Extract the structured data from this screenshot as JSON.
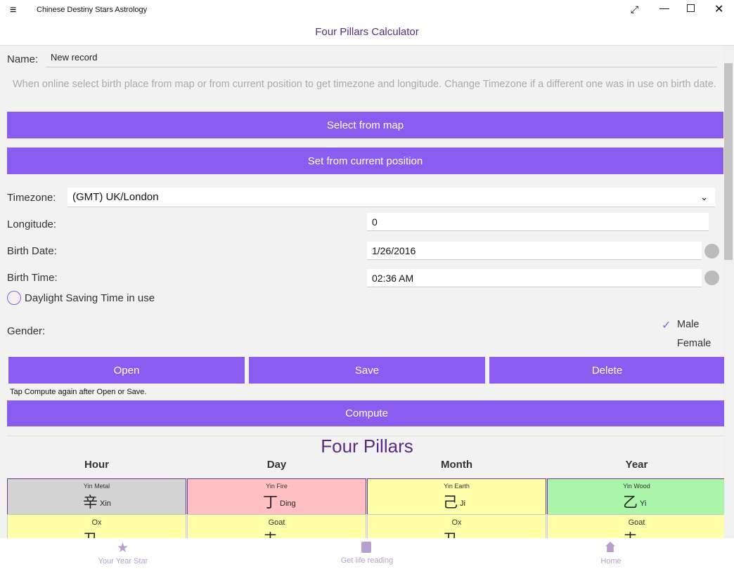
{
  "window": {
    "title": "Chinese Destiny Stars Astrology"
  },
  "header": {
    "title": "Four Pillars Calculator"
  },
  "form": {
    "name_label": "Name:",
    "name_value": "New record",
    "hint": "When online select birth place from map or from current position to get timezone and longitude. Change Timezone if a different one was in use on birth date.",
    "select_map": "Select from map",
    "set_position": "Set from current position",
    "timezone_label": "Timezone:",
    "timezone_value": "(GMT) UK/London",
    "longitude_label": "Longitude:",
    "longitude_value": "0",
    "birth_date_label": "Birth Date:",
    "birth_date_value": "1/26/2016",
    "birth_time_label": "Birth Time:",
    "birth_time_value": "02:36 AM",
    "dst_label": "Daylight Saving Time in use",
    "gender_label": "Gender:",
    "gender_options": [
      "Male",
      "Female"
    ],
    "buttons": [
      "Open",
      "Save",
      "Delete"
    ],
    "note": "Tap Compute again after Open or Save.",
    "compute": "Compute"
  },
  "pillars": {
    "title": "Four Pillars",
    "columns": [
      {
        "heading": "Hour",
        "stem_element": "Yin Metal",
        "stem_char": "辛",
        "stem_name": "Xin",
        "branch": "Ox",
        "branch_char": "丑"
      },
      {
        "heading": "Day",
        "stem_element": "Yin Fire",
        "stem_char": "丁",
        "stem_name": "Ding",
        "branch": "Goat",
        "branch_char": "未"
      },
      {
        "heading": "Month",
        "stem_element": "Yin Earth",
        "stem_char": "己",
        "stem_name": "Ji",
        "branch": "Ox",
        "branch_char": "丑"
      },
      {
        "heading": "Year",
        "stem_element": "Yin Wood",
        "stem_char": "乙",
        "stem_name": "Yi",
        "branch": "Goat",
        "branch_char": "未"
      }
    ]
  },
  "nav": [
    "Your Year Star",
    "Get life reading",
    "Home"
  ]
}
